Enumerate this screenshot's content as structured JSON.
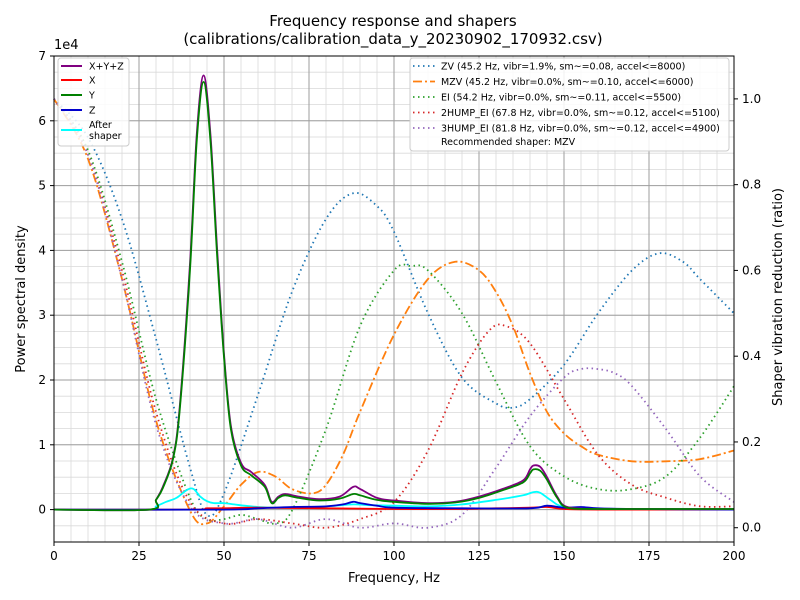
{
  "chart_data": {
    "type": "line",
    "title_line1": "Frequency response and shapers",
    "title_line2": "(calibrations/calibration_data_y_20230902_170932.csv)",
    "xlabel": "Frequency, Hz",
    "ylabel_left": "Power spectral density",
    "ylabel_right": "Shaper vibration reduction (ratio)",
    "offset_text": "1e4",
    "xlim": [
      0,
      200
    ],
    "ylim_left": [
      -0.5,
      7
    ],
    "ylim_right": [
      -0.0333,
      1.1
    ],
    "xticks": [
      0,
      25,
      50,
      75,
      100,
      125,
      150,
      175,
      200
    ],
    "xtick_labels": [
      "0",
      "25",
      "50",
      "75",
      "100",
      "125",
      "150",
      "175",
      "200"
    ],
    "yticks_left": [
      0,
      1,
      2,
      3,
      4,
      5,
      6,
      7
    ],
    "ytick_labels_left": [
      "0",
      "1",
      "2",
      "3",
      "4",
      "5",
      "6",
      "7"
    ],
    "yticks_right": [
      0.0,
      0.2,
      0.4,
      0.6,
      0.8,
      1.0
    ],
    "ytick_labels_right": [
      "0.0",
      "0.2",
      "0.4",
      "0.6",
      "0.8",
      "1.0"
    ],
    "psd_series": [
      {
        "name": "X+Y+Z",
        "color": "#800080",
        "x": [
          0,
          28,
          30,
          32,
          35,
          37,
          40,
          42,
          44,
          46,
          48,
          50,
          52,
          55,
          58,
          62,
          64,
          66,
          68,
          72,
          78,
          84,
          88,
          90,
          95,
          100,
          110,
          118,
          125,
          132,
          138,
          140,
          141,
          143,
          145,
          148,
          151,
          160,
          170,
          200
        ],
        "y": [
          0,
          0,
          0.15,
          0.35,
          0.8,
          1.6,
          3.8,
          5.8,
          6.7,
          5.8,
          4.0,
          2.4,
          1.3,
          0.72,
          0.58,
          0.38,
          0.12,
          0.2,
          0.24,
          0.2,
          0.16,
          0.2,
          0.35,
          0.32,
          0.18,
          0.14,
          0.1,
          0.12,
          0.2,
          0.32,
          0.45,
          0.62,
          0.68,
          0.66,
          0.5,
          0.2,
          0.04,
          0.01,
          0.01,
          0.01
        ]
      },
      {
        "name": "X",
        "color": "#ff0000",
        "x": [
          0,
          40,
          45,
          50,
          60,
          80,
          100,
          120,
          130,
          140,
          145,
          150,
          160,
          200
        ],
        "y": [
          0,
          0,
          0.02,
          0.02,
          0.03,
          0.02,
          0.01,
          0.01,
          0.02,
          0.03,
          0.04,
          0.01,
          0.0,
          0.0
        ]
      },
      {
        "name": "Y",
        "color": "#008000",
        "x": [
          0,
          28,
          30,
          32,
          35,
          37,
          40,
          42,
          44,
          46,
          48,
          50,
          52,
          55,
          58,
          62,
          64,
          66,
          68,
          72,
          78,
          84,
          88,
          90,
          95,
          100,
          110,
          118,
          125,
          132,
          138,
          140,
          141,
          143,
          145,
          148,
          151,
          160,
          170,
          200
        ],
        "y": [
          0,
          0,
          0.15,
          0.33,
          0.78,
          1.55,
          3.7,
          5.7,
          6.6,
          5.7,
          3.9,
          2.35,
          1.25,
          0.68,
          0.53,
          0.35,
          0.1,
          0.18,
          0.22,
          0.18,
          0.14,
          0.17,
          0.24,
          0.22,
          0.15,
          0.12,
          0.09,
          0.11,
          0.18,
          0.3,
          0.42,
          0.56,
          0.62,
          0.6,
          0.46,
          0.18,
          0.03,
          0.01,
          0.01,
          0.01
        ]
      },
      {
        "name": "Z",
        "color": "#0000cd",
        "x": [
          0,
          50,
          60,
          70,
          80,
          85,
          88,
          90,
          95,
          100,
          120,
          140,
          145,
          150,
          155,
          160,
          170,
          200
        ],
        "y": [
          0,
          0,
          0.02,
          0.04,
          0.05,
          0.08,
          0.12,
          0.1,
          0.06,
          0.03,
          0.02,
          0.02,
          0.06,
          0.03,
          0.04,
          0.02,
          0.01,
          0.0
        ]
      },
      {
        "name": "After\nshaper",
        "color": "#00ffff",
        "x": [
          0,
          28,
          30,
          33,
          36,
          39,
          41,
          43,
          45,
          47,
          50,
          53,
          56,
          60,
          65,
          70,
          80,
          88,
          92,
          100,
          110,
          120,
          130,
          138,
          141,
          143,
          146,
          150,
          160,
          200
        ],
        "y": [
          0,
          0,
          0.05,
          0.12,
          0.18,
          0.3,
          0.32,
          0.2,
          0.13,
          0.1,
          0.1,
          0.08,
          0.06,
          0.04,
          0.03,
          0.03,
          0.05,
          0.08,
          0.07,
          0.06,
          0.05,
          0.08,
          0.15,
          0.22,
          0.27,
          0.26,
          0.15,
          0.04,
          0.01,
          0.0
        ]
      }
    ],
    "shaper_series": [
      {
        "name": "ZV (45.2 Hz, vibr=1.9%, sm~=0.08, accel<=8000)",
        "color": "#1f77b4",
        "dash": "1.5,3.5",
        "x": [
          0,
          10,
          20,
          30,
          40,
          45,
          50,
          60,
          70,
          80,
          88,
          95,
          100,
          110,
          120,
          130,
          135,
          140,
          150,
          160,
          170,
          178,
          185,
          190,
          200
        ],
        "y": [
          1.0,
          0.91,
          0.72,
          0.44,
          0.14,
          0.03,
          0.08,
          0.31,
          0.55,
          0.72,
          0.78,
          0.75,
          0.69,
          0.5,
          0.35,
          0.29,
          0.28,
          0.3,
          0.38,
          0.5,
          0.6,
          0.64,
          0.62,
          0.58,
          0.5
        ]
      },
      {
        "name": "MZV (45.2 Hz, vibr=0.0%, sm~=0.10, accel<=6000)",
        "color": "#ff7f0e",
        "dash": "9,3,2,3",
        "x": [
          0,
          10,
          20,
          30,
          40,
          45,
          50,
          55,
          60,
          65,
          70,
          76,
          80,
          85,
          90,
          100,
          110,
          118,
          125,
          130,
          135,
          140,
          145,
          150,
          155,
          160,
          170,
          180,
          190,
          200
        ],
        "y": [
          1.0,
          0.86,
          0.58,
          0.25,
          0.04,
          0.01,
          0.05,
          0.1,
          0.13,
          0.12,
          0.09,
          0.08,
          0.1,
          0.17,
          0.27,
          0.45,
          0.58,
          0.62,
          0.6,
          0.55,
          0.47,
          0.36,
          0.27,
          0.22,
          0.19,
          0.17,
          0.155,
          0.155,
          0.16,
          0.18
        ]
      },
      {
        "name": "EI (54.2 Hz, vibr=0.0%, sm~=0.11, accel<=5500)",
        "color": "#2ca02c",
        "dash": "1.5,3.5",
        "x": [
          0,
          10,
          20,
          30,
          40,
          45,
          50,
          55,
          60,
          65,
          70,
          80,
          90,
          100,
          105,
          110,
          120,
          130,
          140,
          150,
          160,
          170,
          180,
          190,
          200
        ],
        "y": [
          1.0,
          0.88,
          0.62,
          0.3,
          0.07,
          0.02,
          0.02,
          0.03,
          0.02,
          0.01,
          0.04,
          0.23,
          0.47,
          0.6,
          0.61,
          0.6,
          0.5,
          0.34,
          0.19,
          0.12,
          0.09,
          0.09,
          0.12,
          0.21,
          0.33
        ]
      },
      {
        "name": "2HUMP_EI (67.8 Hz, vibr=0.0%, sm~=0.12, accel<=5100)",
        "color": "#d62728",
        "dash": "1.5,3.5",
        "x": [
          0,
          10,
          20,
          30,
          40,
          50,
          60,
          70,
          80,
          90,
          100,
          110,
          120,
          128,
          133,
          140,
          150,
          160,
          170,
          180,
          190,
          200
        ],
        "y": [
          1.0,
          0.87,
          0.6,
          0.27,
          0.06,
          0.01,
          0.02,
          0.01,
          0.0,
          0.02,
          0.06,
          0.18,
          0.36,
          0.46,
          0.47,
          0.43,
          0.3,
          0.17,
          0.1,
          0.07,
          0.05,
          0.05
        ]
      },
      {
        "name": "3HUMP_EI (81.8 Hz, vibr=0.0%, sm~=0.12, accel<=4900)",
        "color": "#9467bd",
        "dash": "1.5,3.5",
        "x": [
          0,
          10,
          20,
          30,
          40,
          50,
          60,
          70,
          80,
          90,
          100,
          110,
          120,
          130,
          140,
          150,
          155,
          160,
          165,
          170,
          180,
          190,
          200
        ],
        "y": [
          1.0,
          0.87,
          0.58,
          0.24,
          0.05,
          0.01,
          0.02,
          0.0,
          0.02,
          0.0,
          0.01,
          0.0,
          0.03,
          0.14,
          0.26,
          0.35,
          0.37,
          0.37,
          0.36,
          0.33,
          0.23,
          0.12,
          0.06
        ]
      }
    ],
    "legend_left": [
      "X+Y+Z",
      "X",
      "Y",
      "Z",
      "After",
      "shaper"
    ],
    "legend_right_recommendation": "Recommended shaper: MZV",
    "legend_left_placement": "top-left",
    "legend_right_placement": "top-right",
    "grid": true
  }
}
